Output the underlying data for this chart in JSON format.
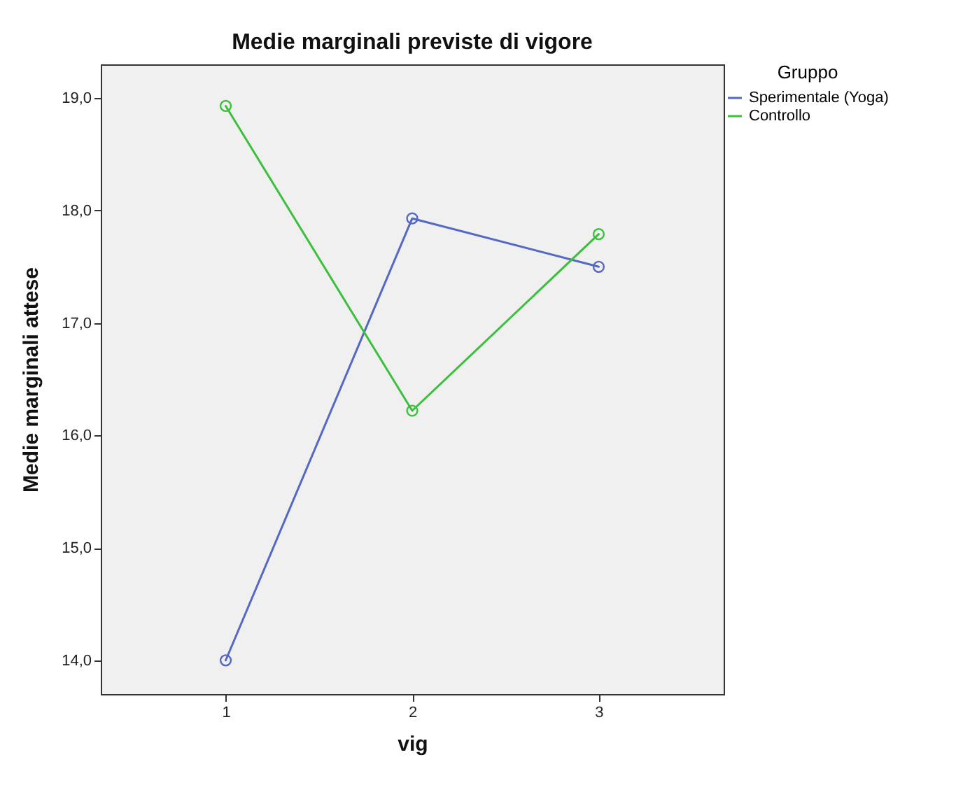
{
  "chart_data": {
    "type": "line",
    "title": "Medie marginali previste di vigore",
    "xlabel": "vig",
    "ylabel": "Medie marginali attese",
    "legend_title": "Gruppo",
    "x": [
      1,
      2,
      3
    ],
    "series": [
      {
        "name": "Sperimentale (Yoga)",
        "color": "#5468c4",
        "values": [
          14.0,
          17.93,
          17.5
        ]
      },
      {
        "name": "Controllo",
        "color": "#3cbf3c",
        "values": [
          18.93,
          16.22,
          17.79
        ]
      }
    ],
    "xlim": [
      0.33,
      3.67
    ],
    "xticks": [
      1,
      2,
      3
    ],
    "ylim": [
      13.7,
      19.3
    ],
    "yticks": [
      {
        "value": 14,
        "label": "14,0"
      },
      {
        "value": 15,
        "label": "15,0"
      },
      {
        "value": 16,
        "label": "16,0"
      },
      {
        "value": 17,
        "label": "17,0"
      },
      {
        "value": 18,
        "label": "18,0"
      },
      {
        "value": 19,
        "label": "19,0"
      }
    ],
    "legend": "top right",
    "marker": "circle",
    "grid": false
  }
}
